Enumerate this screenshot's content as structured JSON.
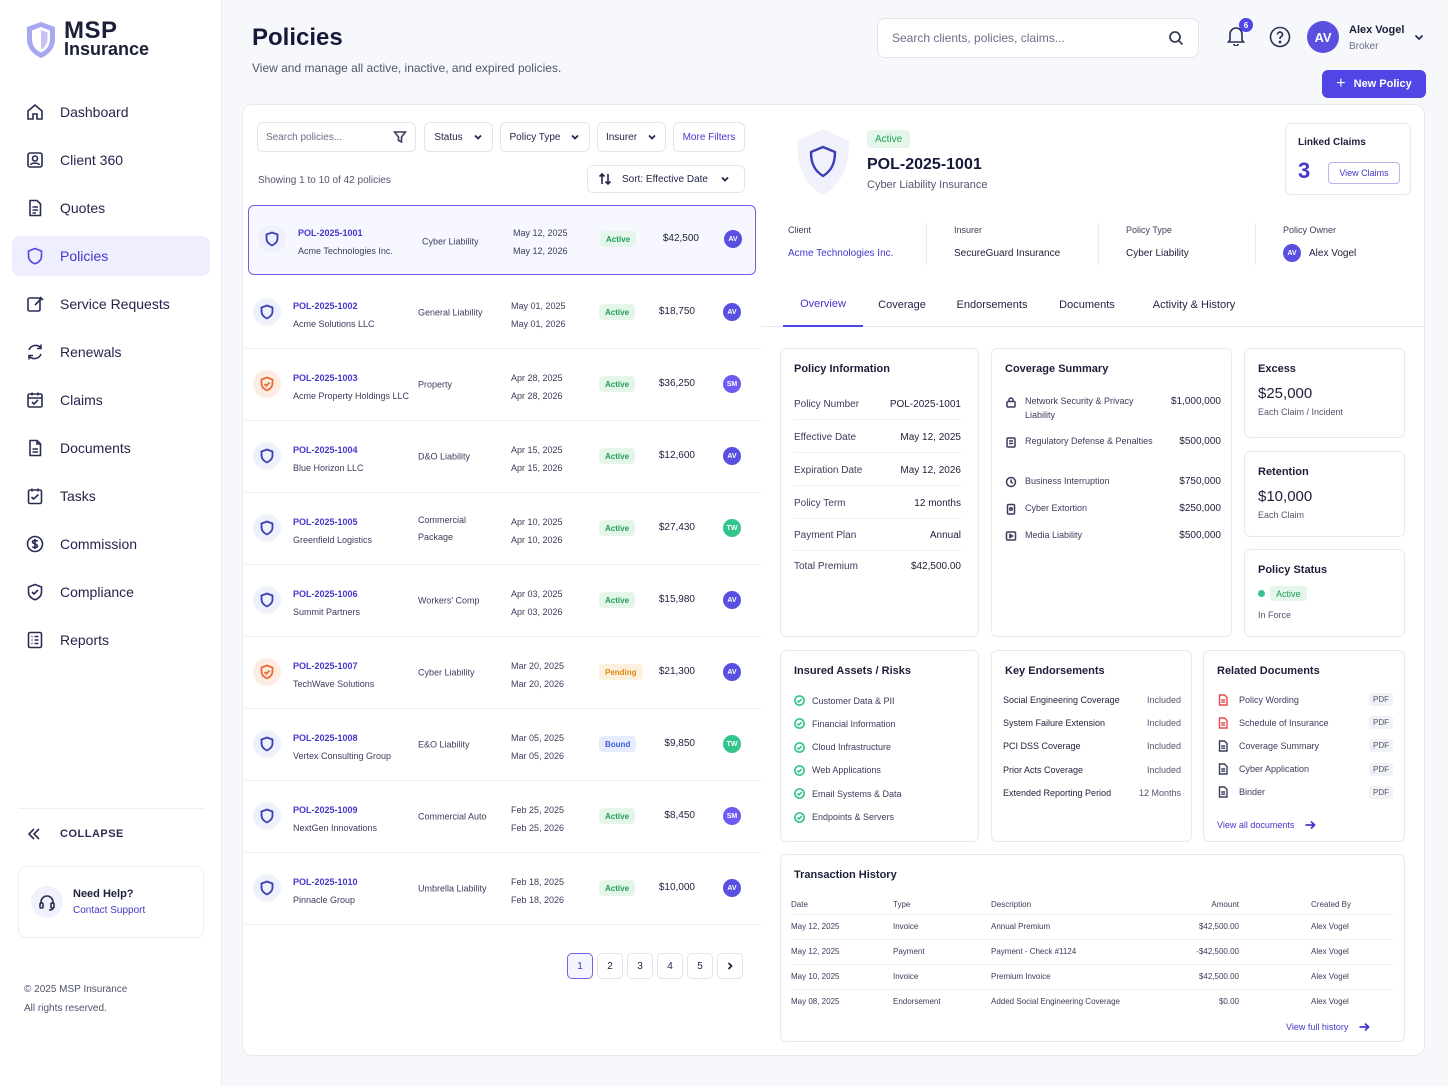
{
  "brand": {
    "line1": "MSP",
    "line2": "Insurance"
  },
  "sidebar": {
    "items": [
      {
        "label": "Dashboard",
        "icon": "home-icon"
      },
      {
        "label": "Client 360",
        "icon": "client-icon"
      },
      {
        "label": "Quotes",
        "icon": "document-icon"
      },
      {
        "label": "Policies",
        "icon": "shield-icon",
        "active": true
      },
      {
        "label": "Service Requests",
        "icon": "edit-icon"
      },
      {
        "label": "Renewals",
        "icon": "refresh-icon"
      },
      {
        "label": "Claims",
        "icon": "claims-icon"
      },
      {
        "label": "Documents",
        "icon": "file-icon"
      },
      {
        "label": "Tasks",
        "icon": "tasks-icon"
      },
      {
        "label": "Commission",
        "icon": "dollar-icon"
      },
      {
        "label": "Compliance",
        "icon": "check-shield-icon"
      },
      {
        "label": "Reports",
        "icon": "reports-icon"
      }
    ],
    "collapse": "COLLAPSE",
    "help_title": "Need Help?",
    "help_link": "Contact Support",
    "copyright": "© 2025 MSP Insurance",
    "rights": "All rights reserved."
  },
  "header": {
    "title": "Policies",
    "subtitle": "View and manage all active, inactive, and expired policies.",
    "search_placeholder": "Search clients, policies, claims...",
    "notifications": "6",
    "user_initials": "AV",
    "user_name": "Alex Vogel",
    "user_role": "Broker",
    "new_policy": "New Policy"
  },
  "list": {
    "search_placeholder": "Search policies...",
    "filters": [
      "Status",
      "Policy Type",
      "Insurer"
    ],
    "more_filters": "More Filters",
    "showing": "Showing 1 to 10 of 42 policies",
    "sort": "Sort: Effective Date",
    "rows": [
      {
        "id": "POL-2025-1001",
        "client": "Acme Technologies Inc.",
        "type": "Cyber Liability",
        "start": "May 12, 2025",
        "end": "May 12, 2026",
        "status": "Active",
        "amount": "$42,500",
        "owner": "AV",
        "icon": "blue"
      },
      {
        "id": "POL-2025-1002",
        "client": "Acme Solutions LLC",
        "type": "General Liability",
        "start": "May 01, 2025",
        "end": "May 01, 2026",
        "status": "Active",
        "amount": "$18,750",
        "owner": "AV",
        "icon": "blue"
      },
      {
        "id": "POL-2025-1003",
        "client": "Acme Property Holdings LLC",
        "type": "Property",
        "start": "Apr 28, 2025",
        "end": "Apr 28, 2026",
        "status": "Active",
        "amount": "$36,250",
        "owner": "SM",
        "icon": "orange"
      },
      {
        "id": "POL-2025-1004",
        "client": "Blue Horizon LLC",
        "type": "D&O Liability",
        "start": "Apr 15, 2025",
        "end": "Apr 15, 2026",
        "status": "Active",
        "amount": "$12,600",
        "owner": "AV",
        "icon": "blue"
      },
      {
        "id": "POL-2025-1005",
        "client": "Greenfield Logistics",
        "type": "Commercial Package",
        "start": "Apr 10, 2025",
        "end": "Apr 10, 2026",
        "status": "Active",
        "amount": "$27,430",
        "owner": "TW",
        "icon": "blue"
      },
      {
        "id": "POL-2025-1006",
        "client": "Summit Partners",
        "type": "Workers' Comp",
        "start": "Apr 03, 2025",
        "end": "Apr 03, 2026",
        "status": "Active",
        "amount": "$15,980",
        "owner": "AV",
        "icon": "blue"
      },
      {
        "id": "POL-2025-1007",
        "client": "TechWave Solutions",
        "type": "Cyber Liability",
        "start": "Mar 20, 2025",
        "end": "Mar 20, 2026",
        "status": "Pending",
        "amount": "$21,300",
        "owner": "AV",
        "icon": "orange"
      },
      {
        "id": "POL-2025-1008",
        "client": "Vertex Consulting Group",
        "type": "E&O Liability",
        "start": "Mar 05, 2025",
        "end": "Mar 05, 2026",
        "status": "Bound",
        "amount": "$9,850",
        "owner": "TW",
        "icon": "blue"
      },
      {
        "id": "POL-2025-1009",
        "client": "NextGen Innovations",
        "type": "Commercial Auto",
        "start": "Feb 25, 2025",
        "end": "Feb 25, 2026",
        "status": "Active",
        "amount": "$8,450",
        "owner": "SM",
        "icon": "blue"
      },
      {
        "id": "POL-2025-1010",
        "client": "Pinnacle Group",
        "type": "Umbrella Liability",
        "start": "Feb 18, 2025",
        "end": "Feb 18, 2026",
        "status": "Active",
        "amount": "$10,000",
        "owner": "AV",
        "icon": "blue"
      }
    ],
    "pages": [
      "1",
      "2",
      "3",
      "4",
      "5"
    ]
  },
  "detail": {
    "status": "Active",
    "title": "POL-2025-1001",
    "subtitle": "Cyber Liability Insurance",
    "linked_claims_label": "Linked Claims",
    "linked_claims_count": "3",
    "view_claims": "View Claims",
    "client_label": "Client",
    "client": "Acme Technologies Inc.",
    "insurer_label": "Insurer",
    "insurer": "SecureGuard Insurance",
    "type_label": "Policy Type",
    "type": "Cyber Liability",
    "owner_label": "Policy Owner",
    "owner_initials": "AV",
    "owner": "Alex Vogel",
    "tabs": [
      "Overview",
      "Coverage",
      "Endorsements",
      "Documents",
      "Activity & History"
    ],
    "policy_info": {
      "title": "Policy Information",
      "rows": [
        {
          "k": "Policy Number",
          "v": "POL-2025-1001"
        },
        {
          "k": "Effective Date",
          "v": "May 12, 2025"
        },
        {
          "k": "Expiration Date",
          "v": "May 12, 2026"
        },
        {
          "k": "Policy Term",
          "v": "12 months"
        },
        {
          "k": "Payment Plan",
          "v": "Annual"
        },
        {
          "k": "Total Premium",
          "v": "$42,500.00"
        }
      ]
    },
    "coverage": {
      "title": "Coverage Summary",
      "rows": [
        {
          "k": "Network Security & Privacy Liability",
          "v": "$1,000,000"
        },
        {
          "k": "Regulatory Defense & Penalties",
          "v": "$500,000"
        },
        {
          "k": "Business Interruption",
          "v": "$750,000"
        },
        {
          "k": "Cyber Extortion",
          "v": "$250,000"
        },
        {
          "k": "Media Liability",
          "v": "$500,000"
        }
      ]
    },
    "excess": {
      "title": "Excess",
      "value": "$25,000",
      "note": "Each Claim / Incident"
    },
    "retention": {
      "title": "Retention",
      "value": "$10,000",
      "note": "Each Claim"
    },
    "policy_status": {
      "title": "Policy Status",
      "value": "Active",
      "note": "In Force"
    },
    "assets": {
      "title": "Insured Assets / Risks",
      "items": [
        "Customer Data & PII",
        "Financial Information",
        "Cloud Infrastructure",
        "Web Applications",
        "Email Systems & Data",
        "Endpoints & Servers"
      ]
    },
    "endorsements": {
      "title": "Key Endorsements",
      "rows": [
        {
          "k": "Social Engineering Coverage",
          "v": "Included"
        },
        {
          "k": "System Failure Extension",
          "v": "Included"
        },
        {
          "k": "PCI DSS Coverage",
          "v": "Included"
        },
        {
          "k": "Prior Acts Coverage",
          "v": "Included"
        },
        {
          "k": "Extended Reporting Period",
          "v": "12 Months"
        }
      ]
    },
    "documents": {
      "title": "Related Documents",
      "rows": [
        {
          "name": "Policy Wording",
          "tag": "PDF",
          "red": true
        },
        {
          "name": "Schedule of Insurance",
          "tag": "PDF",
          "red": true
        },
        {
          "name": "Coverage Summary",
          "tag": "PDF",
          "red": false
        },
        {
          "name": "Cyber Application",
          "tag": "PDF",
          "red": false
        },
        {
          "name": "Binder",
          "tag": "PDF",
          "red": false
        }
      ],
      "view_all": "View all documents"
    },
    "transactions": {
      "title": "Transaction History",
      "headers": [
        "Date",
        "Type",
        "Description",
        "Amount",
        "Created By"
      ],
      "rows": [
        [
          "May 12, 2025",
          "Invoice",
          "Annual Premium",
          "$42,500.00",
          "Alex Vogel"
        ],
        [
          "May 12, 2025",
          "Payment",
          "Payment - Check #1124",
          "-$42,500.00",
          "Alex Vogel"
        ],
        [
          "May 10, 2025",
          "Invoice",
          "Premium Invoice",
          "$42,500.00",
          "Alex Vogel"
        ],
        [
          "May 08, 2025",
          "Endorsement",
          "Added Social Engineering Coverage",
          "$0.00",
          "Alex Vogel"
        ]
      ],
      "view_full": "View full history"
    }
  },
  "colors": {
    "accent": "#4f46e5",
    "active": "#1f9d55",
    "pending": "#e08a16",
    "bound": "#3b5fd9"
  }
}
